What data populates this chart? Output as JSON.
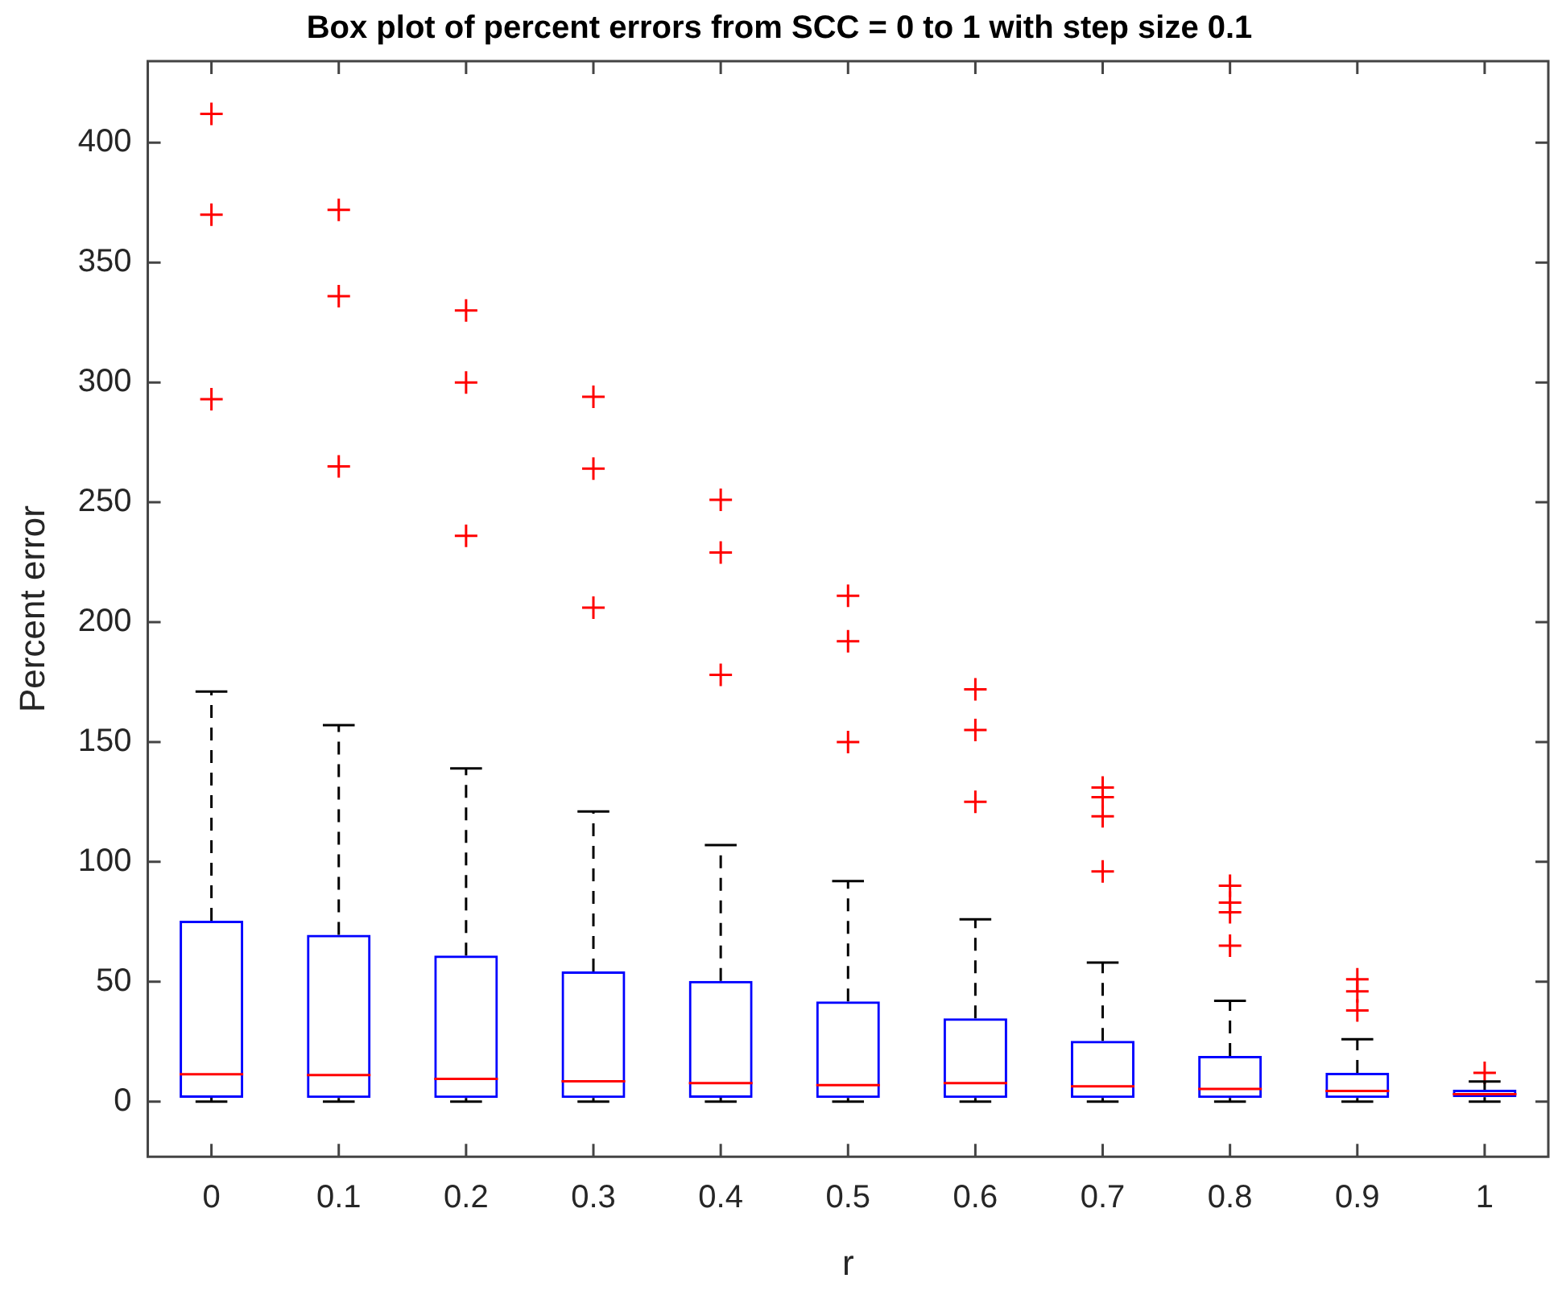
{
  "chart_data": {
    "type": "box",
    "title": "Box plot of percent errors from SCC = 0 to 1 with step size 0.1",
    "xlabel": "r",
    "ylabel": "Percent error",
    "categories": [
      "0",
      "0.1",
      "0.2",
      "0.3",
      "0.4",
      "0.5",
      "0.6",
      "0.7",
      "0.8",
      "0.9",
      "1"
    ],
    "series": [
      {
        "color": "#0000ff",
        "boxes": [
          {
            "low": 0,
            "q1": 1.6,
            "median": 11.4,
            "q3": 75.4,
            "high": 171,
            "outliers": [
              412,
              370,
              293
            ]
          },
          {
            "low": 0,
            "q1": 1.5,
            "median": 11.1,
            "q3": 69.6,
            "high": 157,
            "outliers": [
              372,
              336,
              265
            ]
          },
          {
            "low": 0,
            "q1": 1.5,
            "median": 9.5,
            "q3": 60.9,
            "high": 139,
            "outliers": [
              330,
              300,
              236
            ]
          },
          {
            "low": 0,
            "q1": 1.5,
            "median": 8.5,
            "q3": 54.3,
            "high": 121,
            "outliers": [
              294,
              264,
              206
            ]
          },
          {
            "low": 0,
            "q1": 1.6,
            "median": 7.7,
            "q3": 50.3,
            "high": 107,
            "outliers": [
              251,
              229,
              178
            ]
          },
          {
            "low": 0,
            "q1": 1.5,
            "median": 6.9,
            "q3": 41.8,
            "high": 92,
            "outliers": [
              211,
              192,
              150
            ]
          },
          {
            "low": 0,
            "q1": 1.5,
            "median": 7.7,
            "q3": 34.7,
            "high": 76,
            "outliers": [
              172,
              155,
              125
            ]
          },
          {
            "low": 0,
            "q1": 1.5,
            "median": 6.4,
            "q3": 25.3,
            "high": 58,
            "outliers": [
              131,
              127,
              119,
              96
            ]
          },
          {
            "low": 0,
            "q1": 1.5,
            "median": 5.3,
            "q3": 19,
            "high": 42,
            "outliers": [
              90,
              83,
              79,
              65
            ]
          },
          {
            "low": 0,
            "q1": 1.5,
            "median": 4.4,
            "q3": 12,
            "high": 26,
            "outliers": [
              51,
              46,
              38
            ]
          },
          {
            "low": 0,
            "q1": 1.8,
            "median": 3.1,
            "q3": 4.9,
            "high": 8.4,
            "outliers": [
              12
            ]
          }
        ]
      }
    ],
    "ylim": [
      -23,
      434
    ],
    "yticks": [
      0,
      50,
      100,
      150,
      200,
      250,
      300,
      350,
      400
    ],
    "grid": false,
    "legend": false,
    "marker": "cross"
  }
}
